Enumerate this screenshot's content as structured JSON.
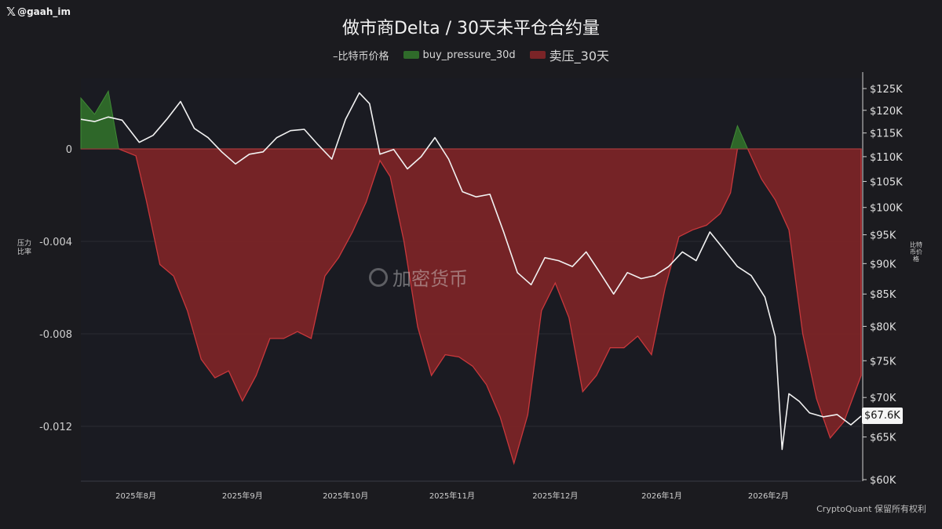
{
  "watermark_handle": "@gaah_im",
  "watermark_text": "加密货币",
  "footer": "CryptoQuant 保留所有权利",
  "colors": {
    "background": "#1b1b1f",
    "sell_fill": "#7a2427",
    "sell_line": "#c9383c",
    "buy_fill": "#2f6b2a",
    "price_line": "#f2f2f2"
  },
  "chart_data": {
    "type": "area",
    "title": "做市商Delta / 30天未平仓合约量",
    "legend": [
      "–比特币价格",
      "buy_pressure_30d",
      "卖压_30天"
    ],
    "ylabel_left": "压力\n比率",
    "ylabel_right": "比特币价格",
    "x_ticks": [
      "2025年8月",
      "2025年9月",
      "2025年10月",
      "2025年11月",
      "2025年12月",
      "2026年1月",
      "2026年2月"
    ],
    "y_left_ticks": [
      "0",
      "-0.004",
      "-0.008",
      "-0.012"
    ],
    "y_left_range": [
      -0.0143,
      0.0026
    ],
    "y_right_ticks": [
      "$125K",
      "$120K",
      "$115K",
      "$110K",
      "$105K",
      "$100K",
      "$95K",
      "$90K",
      "$85K",
      "$80K",
      "$75K",
      "$70K",
      "$65K",
      "$60K"
    ],
    "y_right_log_scale": true,
    "price_last_label": "$67.6K",
    "x_range": [
      "2025-07-16",
      "2026-02-28"
    ],
    "pressure_series": {
      "name": "pressure_ratio",
      "points": [
        [
          "2025-07-16",
          0.0022
        ],
        [
          "2025-07-20",
          0.0015
        ],
        [
          "2025-07-24",
          0.0025
        ],
        [
          "2025-07-27",
          0.0
        ],
        [
          "2025-08-01",
          -0.0003
        ],
        [
          "2025-08-04",
          -0.0022
        ],
        [
          "2025-08-08",
          -0.005
        ],
        [
          "2025-08-12",
          -0.0055
        ],
        [
          "2025-08-16",
          -0.007
        ],
        [
          "2025-08-20",
          -0.0091
        ],
        [
          "2025-08-24",
          -0.0099
        ],
        [
          "2025-08-28",
          -0.0096
        ],
        [
          "2025-09-01",
          -0.0109
        ],
        [
          "2025-09-05",
          -0.0098
        ],
        [
          "2025-09-09",
          -0.0082
        ],
        [
          "2025-09-13",
          -0.0082
        ],
        [
          "2025-09-17",
          -0.0079
        ],
        [
          "2025-09-21",
          -0.0082
        ],
        [
          "2025-09-25",
          -0.0055
        ],
        [
          "2025-09-29",
          -0.0047
        ],
        [
          "2025-10-03",
          -0.0036
        ],
        [
          "2025-10-07",
          -0.0023
        ],
        [
          "2025-10-11",
          -0.0005
        ],
        [
          "2025-10-14",
          -0.0012
        ],
        [
          "2025-10-18",
          -0.004
        ],
        [
          "2025-10-22",
          -0.0077
        ],
        [
          "2025-10-26",
          -0.0098
        ],
        [
          "2025-10-30",
          -0.0089
        ],
        [
          "2025-11-03",
          -0.009
        ],
        [
          "2025-11-07",
          -0.0094
        ],
        [
          "2025-11-11",
          -0.0102
        ],
        [
          "2025-11-15",
          -0.0116
        ],
        [
          "2025-11-19",
          -0.0136
        ],
        [
          "2025-11-23",
          -0.0115
        ],
        [
          "2025-11-27",
          -0.007
        ],
        [
          "2025-12-01",
          -0.0058
        ],
        [
          "2025-12-05",
          -0.0073
        ],
        [
          "2025-12-09",
          -0.0105
        ],
        [
          "2025-12-13",
          -0.0098
        ],
        [
          "2025-12-17",
          -0.0086
        ],
        [
          "2025-12-21",
          -0.0086
        ],
        [
          "2025-12-25",
          -0.0081
        ],
        [
          "2025-12-29",
          -0.0089
        ],
        [
          "2026-01-02",
          -0.006
        ],
        [
          "2026-01-06",
          -0.0038
        ],
        [
          "2026-01-10",
          -0.0035
        ],
        [
          "2026-01-14",
          -0.0033
        ],
        [
          "2026-01-18",
          -0.0028
        ],
        [
          "2026-01-21",
          -0.0019
        ],
        [
          "2026-01-23",
          0.001
        ],
        [
          "2026-01-26",
          0.0
        ],
        [
          "2026-01-30",
          -0.0013
        ],
        [
          "2026-02-03",
          -0.0022
        ],
        [
          "2026-02-07",
          -0.0035
        ],
        [
          "2026-02-11",
          -0.008
        ],
        [
          "2026-02-15",
          -0.0108
        ],
        [
          "2026-02-19",
          -0.0125
        ],
        [
          "2026-02-23",
          -0.0118
        ],
        [
          "2026-02-28",
          -0.0098
        ]
      ]
    },
    "price_series": {
      "name": "比特币价格",
      "points": [
        [
          "2025-07-16",
          118000
        ],
        [
          "2025-07-20",
          117500
        ],
        [
          "2025-07-24",
          118500
        ],
        [
          "2025-07-28",
          117800
        ],
        [
          "2025-08-02",
          113000
        ],
        [
          "2025-08-06",
          114500
        ],
        [
          "2025-08-10",
          118000
        ],
        [
          "2025-08-14",
          122000
        ],
        [
          "2025-08-18",
          116000
        ],
        [
          "2025-08-22",
          114000
        ],
        [
          "2025-08-26",
          111000
        ],
        [
          "2025-08-30",
          108500
        ],
        [
          "2025-09-03",
          110500
        ],
        [
          "2025-09-07",
          111000
        ],
        [
          "2025-09-11",
          114000
        ],
        [
          "2025-09-15",
          115500
        ],
        [
          "2025-09-19",
          115800
        ],
        [
          "2025-09-23",
          112500
        ],
        [
          "2025-09-27",
          109500
        ],
        [
          "2025-10-01",
          118000
        ],
        [
          "2025-10-05",
          124000
        ],
        [
          "2025-10-08",
          121500
        ],
        [
          "2025-10-11",
          110500
        ],
        [
          "2025-10-15",
          111500
        ],
        [
          "2025-10-19",
          107500
        ],
        [
          "2025-10-23",
          110000
        ],
        [
          "2025-10-27",
          114000
        ],
        [
          "2025-10-31",
          109500
        ],
        [
          "2025-11-04",
          103000
        ],
        [
          "2025-11-08",
          102000
        ],
        [
          "2025-11-12",
          102500
        ],
        [
          "2025-11-16",
          95500
        ],
        [
          "2025-11-20",
          88500
        ],
        [
          "2025-11-24",
          86500
        ],
        [
          "2025-11-28",
          91000
        ],
        [
          "2025-12-02",
          90500
        ],
        [
          "2025-12-06",
          89500
        ],
        [
          "2025-12-10",
          92000
        ],
        [
          "2025-12-14",
          88500
        ],
        [
          "2025-12-18",
          85000
        ],
        [
          "2025-12-22",
          88500
        ],
        [
          "2025-12-26",
          87500
        ],
        [
          "2025-12-30",
          88000
        ],
        [
          "2026-01-03",
          89500
        ],
        [
          "2026-01-07",
          92000
        ],
        [
          "2026-01-11",
          90500
        ],
        [
          "2026-01-15",
          95500
        ],
        [
          "2026-01-19",
          92500
        ],
        [
          "2026-01-23",
          89500
        ],
        [
          "2026-01-27",
          88000
        ],
        [
          "2026-01-31",
          84500
        ],
        [
          "2026-02-03",
          78500
        ],
        [
          "2026-02-05",
          63500
        ],
        [
          "2026-02-07",
          70500
        ],
        [
          "2026-02-10",
          69500
        ],
        [
          "2026-02-13",
          68000
        ],
        [
          "2026-02-17",
          67500
        ],
        [
          "2026-02-21",
          67800
        ],
        [
          "2026-02-25",
          66500
        ],
        [
          "2026-02-28",
          67600
        ]
      ]
    }
  }
}
